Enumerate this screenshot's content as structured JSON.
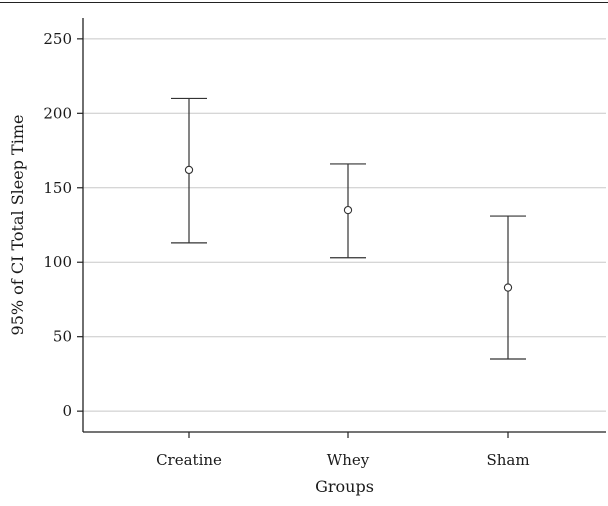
{
  "chart_data": {
    "type": "scatter",
    "subtype": "error-bar",
    "title": "",
    "xlabel": "Groups",
    "ylabel": "95% of CI Total Sleep Time",
    "categories": [
      "Creatine",
      "Whey",
      "Sham"
    ],
    "series": [
      {
        "mean": [
          162,
          135,
          83
        ],
        "lower": [
          113,
          103,
          35
        ],
        "upper": [
          210,
          166,
          131
        ]
      }
    ],
    "ylim": [
      -14,
      264
    ],
    "yticks": [
      0,
      50,
      100,
      150,
      200,
      250
    ],
    "grid": true,
    "legend": "none",
    "colors": {
      "marks": "#333333",
      "grid": "#c8c8c8",
      "axis": "#222222"
    }
  }
}
